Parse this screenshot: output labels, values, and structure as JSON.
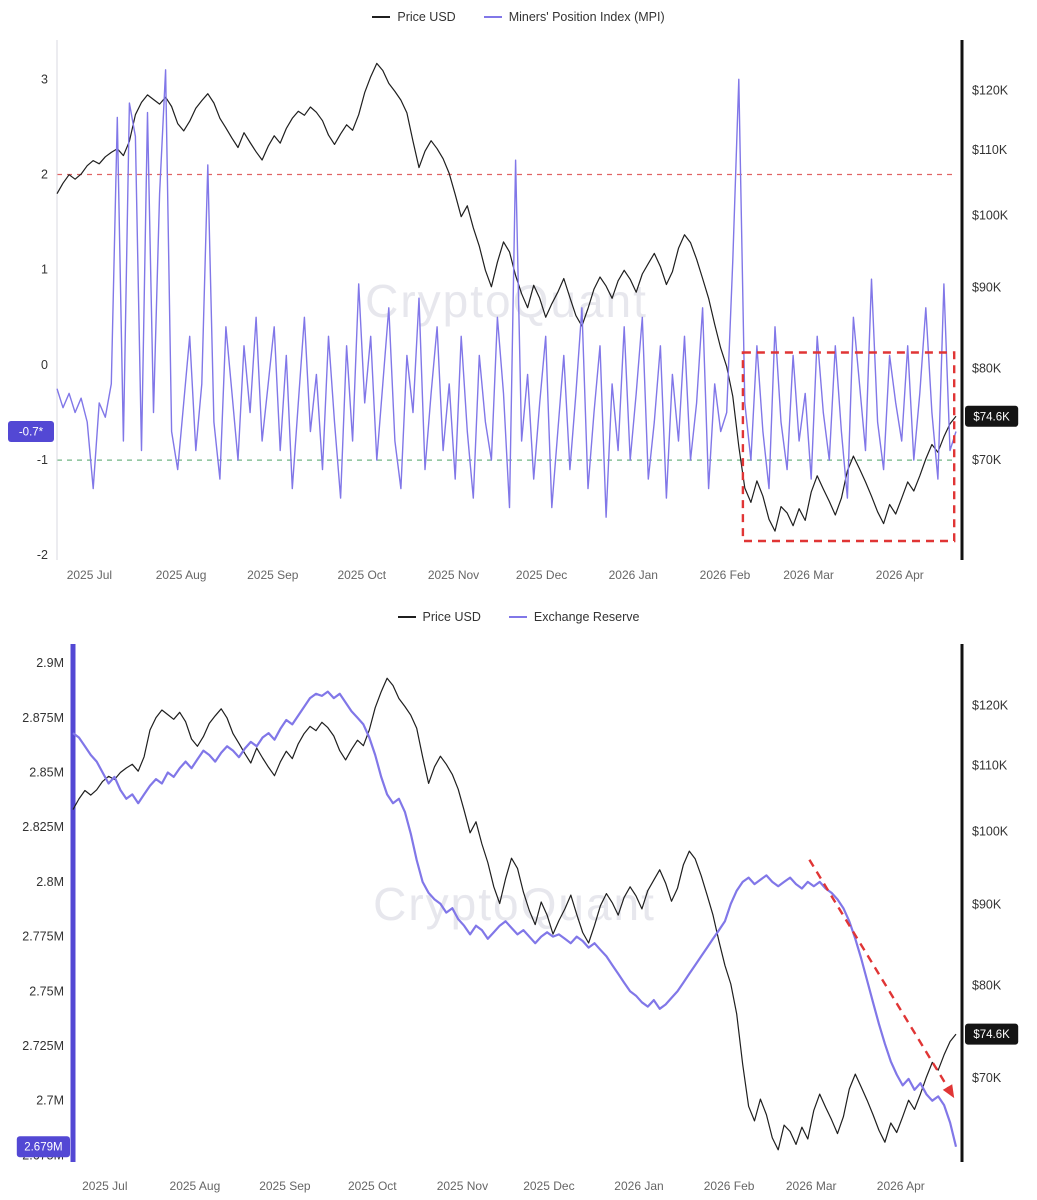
{
  "watermark": "CryptoQuant",
  "chart_data": [
    {
      "type": "line",
      "id": "price-vs-mpi",
      "legend_labels": [
        "Price USD",
        "Miners' Position Index (MPI)"
      ],
      "x_ticks": [
        {
          "f": 0.036,
          "label": "2025 Jul"
        },
        {
          "f": 0.138,
          "label": "2025 Aug"
        },
        {
          "f": 0.24,
          "label": "2025 Sep"
        },
        {
          "f": 0.339,
          "label": "2025 Oct"
        },
        {
          "f": 0.441,
          "label": "2025 Nov"
        },
        {
          "f": 0.539,
          "label": "2025 Dec"
        },
        {
          "f": 0.641,
          "label": "2026 Jan"
        },
        {
          "f": 0.743,
          "label": "2026 Feb"
        },
        {
          "f": 0.836,
          "label": "2026 Mar"
        },
        {
          "f": 0.9375,
          "label": "2026 Apr"
        }
      ],
      "left_axis": {
        "scale": "linear",
        "min": -2.05,
        "max": 3.35,
        "spine_color": "#d9d9e0",
        "spine_width": 1,
        "ticks": [
          {
            "v": 3,
            "label": "3"
          },
          {
            "v": 2,
            "label": "2"
          },
          {
            "v": 1,
            "label": "1"
          },
          {
            "v": 0,
            "label": "0"
          },
          {
            "v": -1,
            "label": "-1"
          },
          {
            "v": -2,
            "label": "-2"
          }
        ]
      },
      "right_axis": {
        "scale": "log",
        "min": 60.5,
        "max": 128,
        "spine_color": "#111111",
        "spine_width": 3,
        "ticks": [
          {
            "v": 120,
            "label": "$120K"
          },
          {
            "v": 110,
            "label": "$110K"
          },
          {
            "v": 100,
            "label": "$100K"
          },
          {
            "v": 90,
            "label": "$90K"
          },
          {
            "v": 80,
            "label": "$80K"
          },
          {
            "v": 70,
            "label": "$70K"
          }
        ]
      },
      "series": [
        {
          "key": "price-usd",
          "name": "Price USD",
          "color": "#1f1f1f",
          "width": 1.2,
          "axis": "right",
          "values": [
            103.2,
            104.8,
            106.1,
            105.4,
            106.2,
            107.5,
            108.3,
            107.8,
            108.9,
            109.6,
            110.2,
            109.1,
            111.4,
            115.8,
            117.9,
            119.2,
            118.4,
            117.6,
            118.8,
            117.2,
            114.3,
            113.1,
            114.7,
            116.9,
            118.2,
            119.4,
            117.8,
            115.2,
            113.6,
            111.9,
            110.4,
            112.8,
            111.2,
            109.7,
            108.4,
            110.6,
            112.3,
            111.1,
            113.5,
            115.2,
            116.4,
            115.7,
            117.1,
            116.2,
            114.8,
            112.4,
            110.9,
            112.6,
            114.1,
            113.2,
            115.8,
            119.6,
            122.4,
            124.8,
            123.5,
            121.2,
            119.8,
            118.3,
            116.1,
            111.4,
            107.2,
            109.8,
            111.5,
            110.2,
            108.6,
            106.3,
            103.1,
            99.8,
            101.4,
            98.2,
            95.6,
            92.3,
            90.1,
            93.4,
            96.2,
            94.8,
            91.6,
            89.2,
            87.4,
            90.3,
            88.6,
            86.2,
            87.9,
            89.4,
            91.2,
            88.7,
            86.4,
            85.1,
            87.3,
            89.8,
            91.4,
            90.2,
            88.6,
            90.9,
            92.3,
            91.1,
            89.4,
            91.8,
            93.2,
            94.6,
            92.8,
            90.4,
            92.1,
            95.3,
            97.2,
            96.1,
            93.8,
            91.2,
            88.6,
            85.3,
            82.4,
            80.2,
            76.8,
            71.4,
            67.2,
            65.8,
            67.9,
            66.4,
            64.2,
            63.1,
            65.4,
            64.8,
            63.6,
            65.2,
            64.1,
            66.8,
            68.4,
            67.1,
            65.9,
            64.6,
            66.2,
            68.9,
            70.4,
            69.1,
            67.8,
            66.4,
            64.9,
            63.8,
            65.6,
            64.7,
            66.2,
            67.8,
            66.9,
            68.4,
            70.1,
            71.6,
            70.8,
            72.4,
            73.8,
            74.6
          ]
        },
        {
          "key": "mpi",
          "name": "Miners' Position Index (MPI)",
          "color": "#8177e8",
          "width": 1.4,
          "axis": "left",
          "values": [
            -0.25,
            -0.45,
            -0.3,
            -0.5,
            -0.35,
            -0.6,
            -1.3,
            -0.4,
            -0.55,
            -0.2,
            2.6,
            -0.8,
            2.75,
            2.4,
            -0.9,
            2.65,
            -0.5,
            1.8,
            3.1,
            -0.7,
            -1.1,
            -0.4,
            0.3,
            -0.9,
            -0.2,
            2.1,
            -0.6,
            -1.2,
            0.4,
            -0.3,
            -1.0,
            0.2,
            -0.5,
            0.5,
            -0.8,
            -0.2,
            0.4,
            -0.9,
            0.1,
            -1.3,
            -0.4,
            0.5,
            -0.7,
            -0.1,
            -1.1,
            0.3,
            -0.6,
            -1.4,
            0.2,
            -0.8,
            0.85,
            -0.4,
            0.3,
            -1.0,
            -0.2,
            0.6,
            -0.8,
            -1.3,
            0.1,
            -0.5,
            0.7,
            -1.1,
            -0.3,
            0.4,
            -0.9,
            -0.2,
            -1.2,
            0.3,
            -0.7,
            -1.4,
            0.1,
            -0.6,
            -1.0,
            0.5,
            -0.3,
            -1.5,
            2.15,
            -0.8,
            -0.1,
            -1.2,
            -0.4,
            0.3,
            -1.5,
            -0.7,
            0.1,
            -1.1,
            -0.3,
            0.6,
            -1.3,
            -0.5,
            0.2,
            -1.6,
            -0.2,
            -0.9,
            0.4,
            -1.0,
            -0.3,
            0.5,
            -1.2,
            -0.6,
            0.2,
            -1.4,
            -0.1,
            -0.8,
            0.3,
            -1.0,
            -0.4,
            0.6,
            -1.3,
            -0.2,
            -0.7,
            -0.5,
            1.1,
            3.0,
            -0.4,
            -1.0,
            0.2,
            -0.7,
            -1.3,
            0.4,
            -0.6,
            -1.1,
            0.1,
            -0.8,
            -0.3,
            -1.2,
            0.3,
            -0.5,
            -1.0,
            0.2,
            -0.7,
            -1.4,
            0.5,
            -0.2,
            -0.9,
            0.9,
            -0.6,
            -1.1,
            0.1,
            -0.4,
            -0.8,
            0.2,
            -1.0,
            -0.3,
            0.6,
            -0.5,
            -1.2,
            0.85,
            -0.9,
            -0.7
          ]
        }
      ],
      "hlines": [
        {
          "axis": "left",
          "v": 2,
          "color": "#e05c5c",
          "dash": "5 5",
          "width": 1.3,
          "opacity": 0.95
        },
        {
          "axis": "left",
          "v": -1,
          "color": "#59a96f",
          "dash": "5 5",
          "width": 1.2,
          "opacity": 0.85
        }
      ],
      "rects": [
        {
          "axis": "left",
          "x0": 0.763,
          "x1": 0.998,
          "y0": 0.13,
          "y1": -1.85,
          "color": "#e03535",
          "dash": "8 6",
          "width": 2.4
        }
      ],
      "arrows": [],
      "badges": [
        {
          "side": "left",
          "axis": "left",
          "v": -0.7,
          "label": "-0.7*",
          "bg": "#5348d4"
        },
        {
          "side": "right",
          "axis": "right",
          "v": 74.6,
          "label": "$74.6K",
          "bg": "#141414"
        }
      ]
    },
    {
      "type": "line",
      "id": "price-vs-exchange-reserve",
      "legend_labels": [
        "Price USD",
        "Exchange Reserve"
      ],
      "x_ticks": [
        {
          "f": 0.036,
          "label": "2025 Jul"
        },
        {
          "f": 0.138,
          "label": "2025 Aug"
        },
        {
          "f": 0.24,
          "label": "2025 Sep"
        },
        {
          "f": 0.339,
          "label": "2025 Oct"
        },
        {
          "f": 0.441,
          "label": "2025 Nov"
        },
        {
          "f": 0.539,
          "label": "2025 Dec"
        },
        {
          "f": 0.641,
          "label": "2026 Jan"
        },
        {
          "f": 0.743,
          "label": "2026 Feb"
        },
        {
          "f": 0.836,
          "label": "2026 Mar"
        },
        {
          "f": 0.9375,
          "label": "2026 Apr"
        }
      ],
      "left_axis": {
        "scale": "linear",
        "min": 2.672,
        "max": 2.906,
        "spine_color": "#5348d4",
        "spine_width": 5,
        "ticks": [
          {
            "v": 2.9,
            "label": "2.9M"
          },
          {
            "v": 2.875,
            "label": "2.875M"
          },
          {
            "v": 2.85,
            "label": "2.85M"
          },
          {
            "v": 2.825,
            "label": "2.825M"
          },
          {
            "v": 2.8,
            "label": "2.8M"
          },
          {
            "v": 2.775,
            "label": "2.775M"
          },
          {
            "v": 2.75,
            "label": "2.75M"
          },
          {
            "v": 2.725,
            "label": "2.725M"
          },
          {
            "v": 2.7,
            "label": "2.7M"
          },
          {
            "v": 2.675,
            "label": "2.675M"
          }
        ]
      },
      "right_axis": {
        "scale": "log",
        "min": 62,
        "max": 130,
        "spine_color": "#111111",
        "spine_width": 3,
        "ticks": [
          {
            "v": 120,
            "label": "$120K"
          },
          {
            "v": 110,
            "label": "$110K"
          },
          {
            "v": 100,
            "label": "$100K"
          },
          {
            "v": 90,
            "label": "$90K"
          },
          {
            "v": 80,
            "label": "$80K"
          },
          {
            "v": 70,
            "label": "$70K"
          }
        ]
      },
      "series": [
        {
          "key": "price-usd",
          "name": "Price USD",
          "color": "#1f1f1f",
          "width": 1.2,
          "axis": "right",
          "values": [
            103.2,
            104.8,
            106.1,
            105.4,
            106.2,
            107.5,
            108.3,
            107.8,
            108.9,
            109.6,
            110.2,
            109.1,
            111.4,
            115.8,
            117.9,
            119.2,
            118.4,
            117.6,
            118.8,
            117.2,
            114.3,
            113.1,
            114.7,
            116.9,
            118.2,
            119.4,
            117.8,
            115.2,
            113.6,
            111.9,
            110.4,
            112.8,
            111.2,
            109.7,
            108.4,
            110.6,
            112.3,
            111.1,
            113.5,
            115.2,
            116.4,
            115.7,
            117.1,
            116.2,
            114.8,
            112.4,
            110.9,
            112.6,
            114.1,
            113.2,
            115.8,
            119.6,
            122.4,
            124.8,
            123.5,
            121.2,
            119.8,
            118.3,
            116.1,
            111.4,
            107.2,
            109.8,
            111.5,
            110.2,
            108.6,
            106.3,
            103.1,
            99.8,
            101.4,
            98.2,
            95.6,
            92.3,
            90.1,
            93.4,
            96.2,
            94.8,
            91.6,
            89.2,
            87.4,
            90.3,
            88.6,
            86.2,
            87.9,
            89.4,
            91.2,
            88.7,
            86.4,
            85.1,
            87.3,
            89.8,
            91.4,
            90.2,
            88.6,
            90.9,
            92.3,
            91.1,
            89.4,
            91.8,
            93.2,
            94.6,
            92.8,
            90.4,
            92.1,
            95.3,
            97.2,
            96.1,
            93.8,
            91.2,
            88.6,
            85.3,
            82.4,
            80.2,
            76.8,
            71.4,
            67.2,
            65.8,
            67.9,
            66.4,
            64.2,
            63.1,
            65.4,
            64.8,
            63.6,
            65.2,
            64.1,
            66.8,
            68.4,
            67.1,
            65.9,
            64.6,
            66.2,
            68.9,
            70.4,
            69.1,
            67.8,
            66.4,
            64.9,
            63.8,
            65.6,
            64.7,
            66.2,
            67.8,
            66.9,
            68.4,
            70.1,
            71.6,
            70.8,
            72.4,
            73.8,
            74.6
          ]
        },
        {
          "key": "exchange-reserve",
          "name": "Exchange Reserve",
          "color": "#8177e8",
          "width": 2.2,
          "axis": "left",
          "values": [
            2.868,
            2.866,
            2.862,
            2.858,
            2.855,
            2.85,
            2.845,
            2.848,
            2.842,
            2.838,
            2.84,
            2.836,
            2.84,
            2.844,
            2.847,
            2.845,
            2.85,
            2.848,
            2.852,
            2.855,
            2.852,
            2.856,
            2.86,
            2.858,
            2.855,
            2.859,
            2.862,
            2.86,
            2.857,
            2.861,
            2.864,
            2.862,
            2.866,
            2.868,
            2.865,
            2.87,
            2.874,
            2.872,
            2.876,
            2.88,
            2.884,
            2.886,
            2.885,
            2.887,
            2.884,
            2.886,
            2.882,
            2.878,
            2.875,
            2.872,
            2.866,
            2.858,
            2.848,
            2.84,
            2.836,
            2.838,
            2.832,
            2.822,
            2.81,
            2.8,
            2.795,
            2.792,
            2.79,
            2.786,
            2.788,
            2.783,
            2.78,
            2.776,
            2.78,
            2.778,
            2.774,
            2.777,
            2.78,
            2.782,
            2.779,
            2.776,
            2.778,
            2.775,
            2.772,
            2.775,
            2.777,
            2.775,
            2.776,
            2.774,
            2.772,
            2.775,
            2.773,
            2.77,
            2.772,
            2.769,
            2.766,
            2.762,
            2.758,
            2.754,
            2.75,
            2.748,
            2.745,
            2.743,
            2.746,
            2.742,
            2.744,
            2.747,
            2.75,
            2.754,
            2.758,
            2.762,
            2.766,
            2.77,
            2.774,
            2.778,
            2.782,
            2.79,
            2.796,
            2.8,
            2.802,
            2.799,
            2.801,
            2.803,
            2.8,
            2.798,
            2.8,
            2.802,
            2.799,
            2.797,
            2.8,
            2.798,
            2.8,
            2.797,
            2.795,
            2.792,
            2.788,
            2.782,
            2.774,
            2.765,
            2.755,
            2.745,
            2.735,
            2.726,
            2.718,
            2.712,
            2.707,
            2.71,
            2.705,
            2.708,
            2.703,
            2.7,
            2.702,
            2.698,
            2.69,
            2.679
          ]
        }
      ],
      "hlines": [],
      "rects": [],
      "arrows": [
        {
          "axis": "right",
          "x0": 0.834,
          "y0": 96,
          "x1": 0.998,
          "y1": 68,
          "color": "#e03535",
          "dash": "8 6",
          "width": 2.4
        }
      ],
      "badges": [
        {
          "side": "left",
          "axis": "left",
          "v": 2.679,
          "label": "2.679M",
          "bg": "#5348d4"
        },
        {
          "side": "right",
          "axis": "right",
          "v": 74.6,
          "label": "$74.6K",
          "bg": "#141414"
        }
      ]
    }
  ]
}
